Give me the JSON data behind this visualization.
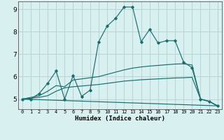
{
  "xlabel": "Humidex (Indice chaleur)",
  "bg_color": "#d8f0f0",
  "grid_color": "#b8d4d4",
  "line_color": "#1a6e6e",
  "xlim": [
    -0.5,
    23.5
  ],
  "ylim": [
    4.55,
    9.35
  ],
  "xticks": [
    0,
    1,
    2,
    3,
    4,
    5,
    6,
    7,
    8,
    9,
    10,
    11,
    12,
    13,
    14,
    15,
    16,
    17,
    18,
    19,
    20,
    21,
    22,
    23
  ],
  "yticks": [
    5,
    6,
    7,
    8,
    9
  ],
  "series_main": {
    "x": [
      0,
      1,
      2,
      3,
      4,
      5,
      6,
      7,
      8,
      9,
      10,
      11,
      12,
      13,
      14,
      15,
      16,
      17,
      18,
      19,
      20,
      21,
      22,
      23
    ],
    "y": [
      5.0,
      5.0,
      5.25,
      5.7,
      6.25,
      5.0,
      6.05,
      5.12,
      5.4,
      7.55,
      8.25,
      8.6,
      9.1,
      9.1,
      7.55,
      8.1,
      7.5,
      7.6,
      7.6,
      6.65,
      6.4,
      5.0,
      4.9,
      4.7
    ]
  },
  "series_line2": {
    "x": [
      0,
      2,
      3,
      4,
      5,
      6,
      9,
      10,
      11,
      12,
      13,
      14,
      15,
      16,
      17,
      18,
      19,
      20,
      21,
      22,
      23
    ],
    "y": [
      5.0,
      5.15,
      5.35,
      5.6,
      5.55,
      5.85,
      6.0,
      6.1,
      6.2,
      6.3,
      6.38,
      6.43,
      6.47,
      6.5,
      6.53,
      6.56,
      6.57,
      6.52,
      5.0,
      4.9,
      4.7
    ]
  },
  "series_line3": {
    "x": [
      0,
      2,
      3,
      4,
      5,
      6,
      9,
      10,
      11,
      12,
      13,
      14,
      15,
      16,
      17,
      18,
      19,
      20,
      21,
      22,
      23
    ],
    "y": [
      5.0,
      5.08,
      5.15,
      5.35,
      5.5,
      5.55,
      5.65,
      5.7,
      5.75,
      5.8,
      5.83,
      5.86,
      5.88,
      5.9,
      5.92,
      5.94,
      5.95,
      5.97,
      5.0,
      4.9,
      4.7
    ]
  },
  "series_straight": {
    "x": [
      0,
      23
    ],
    "y": [
      5.0,
      4.7
    ]
  }
}
